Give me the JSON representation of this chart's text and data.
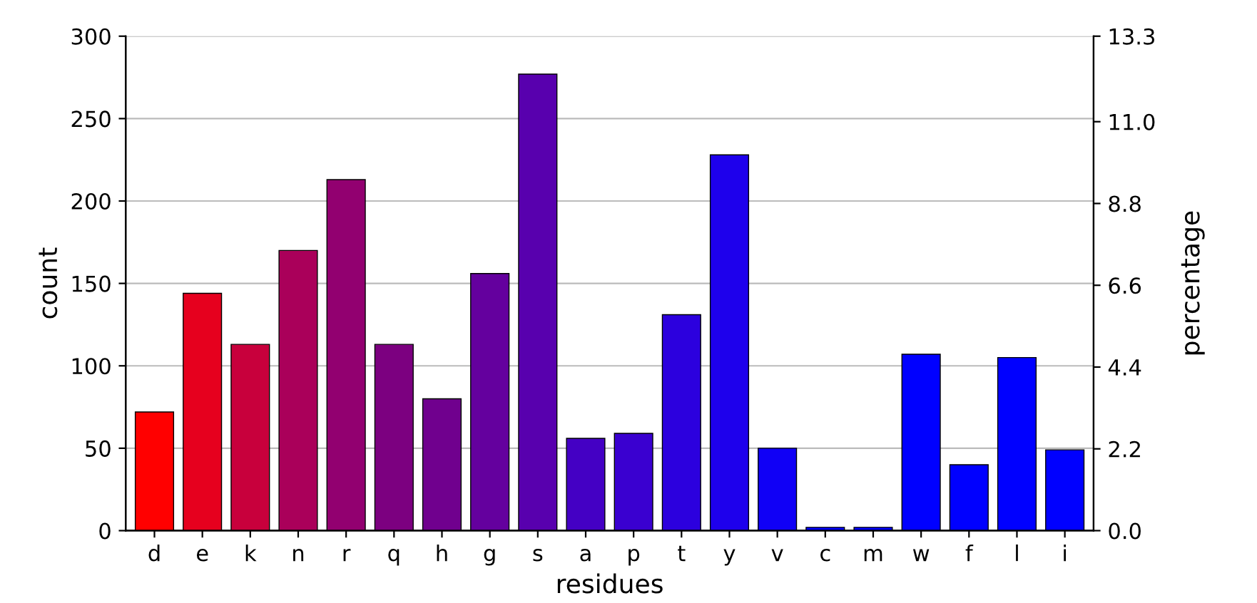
{
  "chart_data": {
    "type": "bar",
    "xlabel": "residues",
    "ylabel": "count",
    "y2label": "percentage",
    "categories": [
      "d",
      "e",
      "k",
      "n",
      "r",
      "q",
      "h",
      "g",
      "s",
      "a",
      "p",
      "t",
      "y",
      "v",
      "c",
      "m",
      "w",
      "f",
      "l",
      "i"
    ],
    "values": [
      72,
      144,
      113,
      170,
      213,
      113,
      80,
      156,
      277,
      56,
      59,
      131,
      228,
      50,
      2,
      2,
      107,
      40,
      105,
      49
    ],
    "colors": [
      "#ff0000",
      "#e6001e",
      "#c8003c",
      "#aa005a",
      "#920070",
      "#7c0080",
      "#70008e",
      "#64009e",
      "#5800ae",
      "#4400c4",
      "#3a00d0",
      "#2c00de",
      "#1e00ec",
      "#1000f6",
      "#0000ff",
      "#0000ff",
      "#0000ff",
      "#0000ff",
      "#0000ff",
      "#0000ff"
    ],
    "ylim": [
      0,
      300
    ],
    "yticks": [
      0,
      50,
      100,
      150,
      200,
      250,
      300
    ],
    "y2lim": [
      0,
      13.3
    ],
    "y2ticks": [
      {
        "value": 0,
        "label": "0.0"
      },
      2.2,
      4.4,
      6.6,
      8.8,
      {
        "value": 11,
        "label": "11.0"
      },
      13.3
    ],
    "grid": "y"
  }
}
